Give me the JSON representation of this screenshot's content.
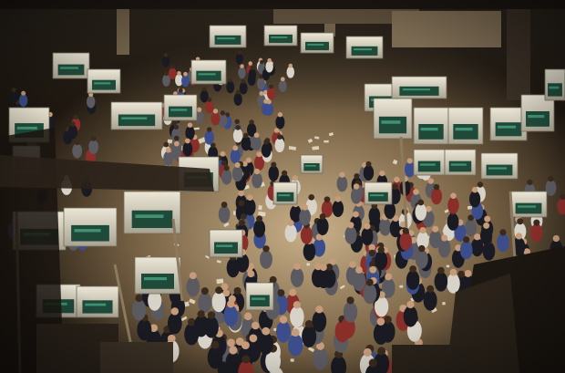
{
  "scene": {
    "palette": {
      "shadow": "#120e0a",
      "floor": "#b9a07a",
      "paper": "#e8e0cc",
      "monitor_case": "#d9d4c2",
      "monitor_screen": "#1f4a3a",
      "screen_glow": "#4fb08a",
      "suit_dark": "#1a1a22",
      "suit_grey": "#5b5a60",
      "shirt_light": "#d8d3c8",
      "jacket_blue": "#3b4d8a",
      "jacket_red": "#8a2e2a",
      "beam": "#8c7a5e",
      "lamp": "#f4e3b0"
    }
  }
}
